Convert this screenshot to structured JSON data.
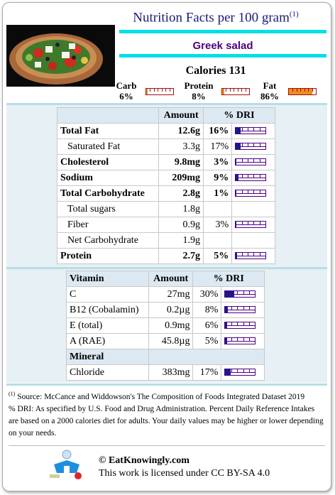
{
  "header": {
    "title": "Nutrition Facts per 100 gram",
    "title_sup": "(1)",
    "food_name": "Greek salad",
    "calories_label": "Calories 131"
  },
  "photo": {
    "subject": "greek salad bowl"
  },
  "macros": [
    {
      "name": "Carb",
      "pct": "6%",
      "fraction": 0.06
    },
    {
      "name": "Protein",
      "pct": "8%",
      "fraction": 0.08
    },
    {
      "name": "Fat",
      "pct": "86%",
      "fraction": 0.86
    }
  ],
  "nutrients": {
    "header": {
      "col_amount": "Amount",
      "col_dri": "% DRI"
    },
    "rows": [
      {
        "name": "Total Fat",
        "amount": "12.6g",
        "dri": "16%",
        "dri_fraction": 0.16,
        "bold": true
      },
      {
        "name": "Saturated Fat",
        "amount": "3.3g",
        "dri": "17%",
        "dri_fraction": 0.17,
        "bold": false
      },
      {
        "name": "Cholesterol",
        "amount": "9.8mg",
        "dri": "3%",
        "dri_fraction": 0.03,
        "bold": true
      },
      {
        "name": "Sodium",
        "amount": "209mg",
        "dri": "9%",
        "dri_fraction": 0.09,
        "bold": true
      },
      {
        "name": "Total Carbohydrate",
        "amount": "2.8g",
        "dri": "1%",
        "dri_fraction": 0.01,
        "bold": true
      },
      {
        "name": "Total sugars",
        "amount": "1.8g",
        "dri": "",
        "bold": false
      },
      {
        "name": "Fiber",
        "amount": "0.9g",
        "dri": "3%",
        "dri_fraction": 0.03,
        "bold": false
      },
      {
        "name": "Net Carbohydrate",
        "amount": "1.9g",
        "dri": "",
        "bold": false
      },
      {
        "name": "Protein",
        "amount": "2.7g",
        "dri": "5%",
        "dri_fraction": 0.05,
        "bold": true
      }
    ]
  },
  "vitamins": {
    "header": {
      "col_name": "Vitamin",
      "col_amount": "Amount",
      "col_dri": "% DRI"
    },
    "rows": [
      {
        "name": "C",
        "amount": "27mg",
        "dri": "30%",
        "dri_fraction": 0.3
      },
      {
        "name": "B12 (Cobalamin)",
        "amount": "0.2µg",
        "dri": "8%",
        "dri_fraction": 0.08
      },
      {
        "name": "E (total)",
        "amount": "0.9mg",
        "dri": "6%",
        "dri_fraction": 0.06
      },
      {
        "name": "A (RAE)",
        "amount": "45.8µg",
        "dri": "5%",
        "dri_fraction": 0.05
      }
    ],
    "mineral_header": "Mineral",
    "mineral_rows": [
      {
        "name": "Chloride",
        "amount": "383mg",
        "dri": "17%",
        "dri_fraction": 0.17
      }
    ]
  },
  "footnote": {
    "sup": "(1)",
    "source": "Source: McCance and Widdowson's The Composition of Foods Integrated Dataset 2019",
    "dri_note": "% DRI: As specified by U.S. Food and Drug Administration. Percent Daily Reference Intakes are based on a 2000 calories diet for adults. Your daily values may be higher or lower depending on your needs."
  },
  "credit": {
    "site": "© EatKnowingly.com",
    "license": "This work is licensed under CC BY-SA 4.0"
  },
  "colors": {
    "title": "#1a1a7a",
    "accent_cyan": "#00e0e6",
    "food_name": "#4b0082",
    "bar_fill": "#1a1a8a",
    "fat_fill": "#f08c1c"
  }
}
